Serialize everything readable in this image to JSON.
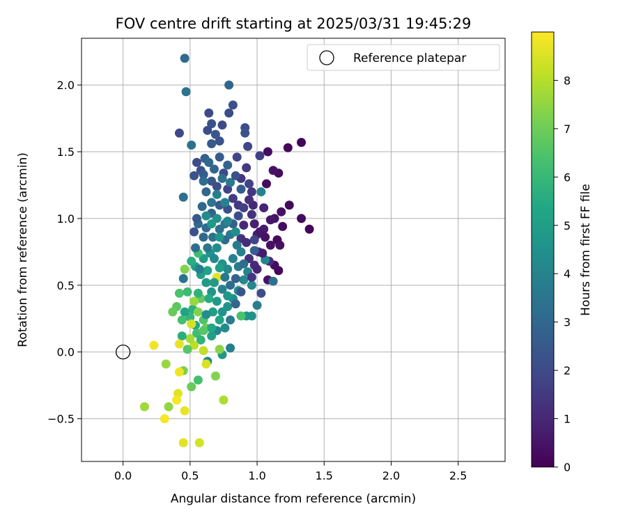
{
  "chart_data": {
    "type": "scatter",
    "title": "FOV centre drift starting at 2025/03/31 19:45:29",
    "xlabel": "Angular distance from reference (arcmin)",
    "ylabel": "Rotation from reference (arcmin)",
    "xlim": [
      -0.31,
      2.85
    ],
    "ylim": [
      -0.82,
      2.35
    ],
    "xticks": [
      0.0,
      0.5,
      1.0,
      1.5,
      2.0,
      2.5
    ],
    "xtick_labels": [
      "0.0",
      "0.5",
      "1.0",
      "1.5",
      "2.0",
      "2.5"
    ],
    "yticks": [
      -0.5,
      0.0,
      0.5,
      1.0,
      1.5,
      2.0
    ],
    "ytick_labels": [
      "−0.5",
      "0.0",
      "0.5",
      "1.0",
      "1.5",
      "2.0"
    ],
    "grid": true,
    "legend": {
      "placement": "top-right",
      "entries": [
        "Reference platepar"
      ]
    },
    "reference_point": {
      "name": "Reference platepar",
      "x": 0.0,
      "y": 0.0
    },
    "colormap": "viridis",
    "colorbar": {
      "label": "Hours from first FF file",
      "range": [
        0,
        9
      ],
      "ticks": [
        0,
        1,
        2,
        3,
        4,
        5,
        6,
        7,
        8
      ],
      "tick_labels": [
        "0",
        "1",
        "2",
        "3",
        "4",
        "5",
        "6",
        "7",
        "8"
      ]
    },
    "points": [
      {
        "x": 1.33,
        "y": 1.57,
        "c": 0.1
      },
      {
        "x": 1.23,
        "y": 1.53,
        "c": 0.2
      },
      {
        "x": 1.08,
        "y": 1.5,
        "c": 0.3
      },
      {
        "x": 1.24,
        "y": 1.1,
        "c": 0.2
      },
      {
        "x": 1.39,
        "y": 0.92,
        "c": 0.1
      },
      {
        "x": 1.33,
        "y": 1.0,
        "c": 0.2
      },
      {
        "x": 1.16,
        "y": 1.34,
        "c": 0.3
      },
      {
        "x": 1.12,
        "y": 1.36,
        "c": 0.4
      },
      {
        "x": 1.07,
        "y": 1.26,
        "c": 0.3
      },
      {
        "x": 1.18,
        "y": 1.05,
        "c": 0.4
      },
      {
        "x": 1.19,
        "y": 0.94,
        "c": 0.3
      },
      {
        "x": 1.15,
        "y": 0.84,
        "c": 0.2
      },
      {
        "x": 1.17,
        "y": 0.8,
        "c": 0.4
      },
      {
        "x": 1.16,
        "y": 0.61,
        "c": 0.2
      },
      {
        "x": 1.13,
        "y": 0.65,
        "c": 0.3
      },
      {
        "x": 1.08,
        "y": 0.54,
        "c": 0.5
      },
      {
        "x": 1.13,
        "y": 1.0,
        "c": 0.5
      },
      {
        "x": 1.1,
        "y": 0.99,
        "c": 0.6
      },
      {
        "x": 1.05,
        "y": 0.92,
        "c": 0.7
      },
      {
        "x": 1.0,
        "y": 0.88,
        "c": 0.8
      },
      {
        "x": 1.05,
        "y": 1.08,
        "c": 0.9
      },
      {
        "x": 0.97,
        "y": 1.1,
        "c": 1.0
      },
      {
        "x": 1.01,
        "y": 0.75,
        "c": 1.0
      },
      {
        "x": 0.98,
        "y": 0.65,
        "c": 1.1
      },
      {
        "x": 0.94,
        "y": 0.7,
        "c": 1.2
      },
      {
        "x": 0.9,
        "y": 0.95,
        "c": 1.0
      },
      {
        "x": 0.88,
        "y": 0.85,
        "c": 1.3
      },
      {
        "x": 1.09,
        "y": 0.68,
        "c": 1.2
      },
      {
        "x": 0.96,
        "y": 1.2,
        "c": 1.4
      },
      {
        "x": 0.92,
        "y": 1.38,
        "c": 1.5
      },
      {
        "x": 1.02,
        "y": 1.47,
        "c": 1.7
      },
      {
        "x": 0.85,
        "y": 1.46,
        "c": 1.8
      },
      {
        "x": 0.93,
        "y": 1.54,
        "c": 1.9
      },
      {
        "x": 0.91,
        "y": 1.68,
        "c": 2.1
      },
      {
        "x": 0.91,
        "y": 1.64,
        "c": 2.3
      },
      {
        "x": 0.82,
        "y": 1.85,
        "c": 2.2
      },
      {
        "x": 0.79,
        "y": 1.79,
        "c": 2.1
      },
      {
        "x": 0.74,
        "y": 1.7,
        "c": 2.0
      },
      {
        "x": 0.64,
        "y": 1.79,
        "c": 2.0
      },
      {
        "x": 0.66,
        "y": 1.71,
        "c": 2.3
      },
      {
        "x": 0.63,
        "y": 1.66,
        "c": 2.1
      },
      {
        "x": 0.69,
        "y": 1.63,
        "c": 2.4
      },
      {
        "x": 0.72,
        "y": 1.58,
        "c": 2.3
      },
      {
        "x": 0.66,
        "y": 1.56,
        "c": 2.5
      },
      {
        "x": 0.42,
        "y": 1.64,
        "c": 2.0
      },
      {
        "x": 0.55,
        "y": 1.42,
        "c": 2.1
      },
      {
        "x": 0.58,
        "y": 1.36,
        "c": 2.2
      },
      {
        "x": 0.53,
        "y": 1.32,
        "c": 2.3
      },
      {
        "x": 0.6,
        "y": 1.33,
        "c": 2.6
      },
      {
        "x": 0.61,
        "y": 1.45,
        "c": 2.7
      },
      {
        "x": 0.66,
        "y": 1.28,
        "c": 2.4
      },
      {
        "x": 0.7,
        "y": 1.24,
        "c": 2.1
      },
      {
        "x": 0.75,
        "y": 1.34,
        "c": 2.0
      },
      {
        "x": 0.78,
        "y": 1.22,
        "c": 1.8
      },
      {
        "x": 0.82,
        "y": 1.15,
        "c": 1.6
      },
      {
        "x": 0.86,
        "y": 1.1,
        "c": 1.5
      },
      {
        "x": 0.88,
        "y": 1.3,
        "c": 1.4
      },
      {
        "x": 0.94,
        "y": 1.26,
        "c": 1.8
      },
      {
        "x": 0.96,
        "y": 1.03,
        "c": 1.3
      },
      {
        "x": 0.98,
        "y": 0.84,
        "c": 1.9
      },
      {
        "x": 0.78,
        "y": 1.07,
        "c": 2.2
      },
      {
        "x": 0.72,
        "y": 1.1,
        "c": 2.5
      },
      {
        "x": 0.66,
        "y": 1.04,
        "c": 2.8
      },
      {
        "x": 0.62,
        "y": 1.2,
        "c": 2.9
      },
      {
        "x": 0.59,
        "y": 1.09,
        "c": 3.0
      },
      {
        "x": 0.56,
        "y": 0.96,
        "c": 3.1
      },
      {
        "x": 0.62,
        "y": 0.93,
        "c": 3.2
      },
      {
        "x": 0.67,
        "y": 0.86,
        "c": 3.4
      },
      {
        "x": 0.72,
        "y": 0.92,
        "c": 3.3
      },
      {
        "x": 0.76,
        "y": 0.96,
        "c": 3.5
      },
      {
        "x": 0.8,
        "y": 0.88,
        "c": 3.6
      },
      {
        "x": 0.85,
        "y": 0.8,
        "c": 3.7
      },
      {
        "x": 0.88,
        "y": 0.75,
        "c": 3.9
      },
      {
        "x": 0.93,
        "y": 0.6,
        "c": 4.0
      },
      {
        "x": 0.96,
        "y": 0.5,
        "c": 4.1
      },
      {
        "x": 0.9,
        "y": 0.54,
        "c": 4.2
      },
      {
        "x": 0.86,
        "y": 0.46,
        "c": 4.3
      },
      {
        "x": 0.82,
        "y": 0.4,
        "c": 4.4
      },
      {
        "x": 0.78,
        "y": 0.34,
        "c": 4.5
      },
      {
        "x": 0.74,
        "y": 0.3,
        "c": 4.6
      },
      {
        "x": 0.7,
        "y": 0.38,
        "c": 4.8
      },
      {
        "x": 0.66,
        "y": 0.45,
        "c": 4.7
      },
      {
        "x": 0.62,
        "y": 0.52,
        "c": 4.9
      },
      {
        "x": 0.58,
        "y": 0.58,
        "c": 5.0
      },
      {
        "x": 0.54,
        "y": 0.64,
        "c": 5.1
      },
      {
        "x": 0.6,
        "y": 0.7,
        "c": 4.9
      },
      {
        "x": 0.65,
        "y": 0.74,
        "c": 4.6
      },
      {
        "x": 0.7,
        "y": 0.78,
        "c": 4.4
      },
      {
        "x": 0.74,
        "y": 0.66,
        "c": 4.5
      },
      {
        "x": 0.78,
        "y": 0.62,
        "c": 4.2
      },
      {
        "x": 0.82,
        "y": 0.7,
        "c": 3.9
      },
      {
        "x": 0.86,
        "y": 0.64,
        "c": 3.7
      },
      {
        "x": 1.03,
        "y": 1.2,
        "c": 4.0
      },
      {
        "x": 1.06,
        "y": 0.69,
        "c": 4.1
      },
      {
        "x": 1.0,
        "y": 0.35,
        "c": 3.8
      },
      {
        "x": 1.12,
        "y": 0.53,
        "c": 3.4
      },
      {
        "x": 0.92,
        "y": 0.27,
        "c": 4.6
      },
      {
        "x": 0.8,
        "y": 0.03,
        "c": 3.9
      },
      {
        "x": 0.74,
        "y": -0.02,
        "c": 4.8
      },
      {
        "x": 0.7,
        "y": 0.16,
        "c": 4.1
      },
      {
        "x": 0.63,
        "y": -0.07,
        "c": 4.2
      },
      {
        "x": 0.54,
        "y": 0.2,
        "c": 5.4
      },
      {
        "x": 0.52,
        "y": 0.32,
        "c": 5.7
      },
      {
        "x": 0.48,
        "y": 0.45,
        "c": 6.1
      },
      {
        "x": 0.45,
        "y": 0.55,
        "c": 3.5
      },
      {
        "x": 0.46,
        "y": 0.62,
        "c": 7.3
      },
      {
        "x": 0.51,
        "y": 0.68,
        "c": 5.6
      },
      {
        "x": 0.56,
        "y": 0.74,
        "c": 6.2
      },
      {
        "x": 0.45,
        "y": 1.16,
        "c": 3.3
      },
      {
        "x": 0.46,
        "y": 2.2,
        "c": 3.1
      },
      {
        "x": 0.47,
        "y": 1.95,
        "c": 3.4
      },
      {
        "x": 0.79,
        "y": 2.0,
        "c": 3.0
      },
      {
        "x": 0.51,
        "y": 1.55,
        "c": 3.3
      },
      {
        "x": 0.55,
        "y": 1.0,
        "c": 2.5
      },
      {
        "x": 0.53,
        "y": 0.9,
        "c": 2.3
      },
      {
        "x": 0.42,
        "y": 0.44,
        "c": 6.4
      },
      {
        "x": 0.4,
        "y": 0.34,
        "c": 6.7
      },
      {
        "x": 0.37,
        "y": 0.3,
        "c": 6.9
      },
      {
        "x": 0.44,
        "y": 0.24,
        "c": 6.3
      },
      {
        "x": 0.5,
        "y": 0.26,
        "c": 5.9
      },
      {
        "x": 0.55,
        "y": 0.14,
        "c": 6.2
      },
      {
        "x": 0.58,
        "y": 0.09,
        "c": 5.8
      },
      {
        "x": 0.6,
        "y": 0.24,
        "c": 6.5
      },
      {
        "x": 0.62,
        "y": 0.18,
        "c": 7.0
      },
      {
        "x": 0.58,
        "y": 0.4,
        "c": 6.8
      },
      {
        "x": 0.56,
        "y": 0.3,
        "c": 7.3
      },
      {
        "x": 0.53,
        "y": 0.38,
        "c": 7.6
      },
      {
        "x": 0.51,
        "y": 0.21,
        "c": 8.4
      },
      {
        "x": 0.53,
        "y": 0.05,
        "c": 8.1
      },
      {
        "x": 0.5,
        "y": 0.1,
        "c": 7.8
      },
      {
        "x": 0.48,
        "y": 0.02,
        "c": 6.6
      },
      {
        "x": 0.44,
        "y": 0.12,
        "c": 5.6
      },
      {
        "x": 0.46,
        "y": 0.3,
        "c": 5.2
      },
      {
        "x": 0.56,
        "y": -0.21,
        "c": 6.3
      },
      {
        "x": 0.51,
        "y": -0.26,
        "c": 6.9
      },
      {
        "x": 0.45,
        "y": -0.14,
        "c": 7.2
      },
      {
        "x": 0.42,
        "y": -0.15,
        "c": 8.8
      },
      {
        "x": 0.41,
        "y": -0.31,
        "c": 8.6
      },
      {
        "x": 0.4,
        "y": -0.36,
        "c": 8.9
      },
      {
        "x": 0.46,
        "y": -0.44,
        "c": 8.7
      },
      {
        "x": 0.34,
        "y": -0.41,
        "c": 7.5
      },
      {
        "x": 0.31,
        "y": -0.5,
        "c": 8.9
      },
      {
        "x": 0.16,
        "y": -0.41,
        "c": 7.7
      },
      {
        "x": 0.32,
        "y": -0.09,
        "c": 7.6
      },
      {
        "x": 0.23,
        "y": 0.05,
        "c": 8.8
      },
      {
        "x": 0.42,
        "y": 0.06,
        "c": 8.7
      },
      {
        "x": 0.6,
        "y": 0.01,
        "c": 8.2
      },
      {
        "x": 0.62,
        "y": -0.09,
        "c": 8.5
      },
      {
        "x": 0.69,
        "y": -0.18,
        "c": 7.3
      },
      {
        "x": 0.75,
        "y": -0.36,
        "c": 7.9
      },
      {
        "x": 0.57,
        "y": -0.68,
        "c": 8.4
      },
      {
        "x": 0.45,
        "y": -0.68,
        "c": 8.6
      },
      {
        "x": 0.72,
        "y": 0.02,
        "c": 7.4
      },
      {
        "x": 0.7,
        "y": 0.56,
        "c": 8.6
      },
      {
        "x": 0.63,
        "y": 0.61,
        "c": 5.2
      },
      {
        "x": 0.72,
        "y": 0.63,
        "c": 5.0
      },
      {
        "x": 0.68,
        "y": 0.52,
        "c": 4.9
      },
      {
        "x": 0.74,
        "y": 0.47,
        "c": 4.0
      },
      {
        "x": 0.76,
        "y": 0.56,
        "c": 3.6
      },
      {
        "x": 0.8,
        "y": 0.5,
        "c": 3.2
      },
      {
        "x": 0.84,
        "y": 0.55,
        "c": 2.8
      },
      {
        "x": 0.88,
        "y": 0.45,
        "c": 2.4
      },
      {
        "x": 0.84,
        "y": 0.36,
        "c": 2.9
      },
      {
        "x": 0.78,
        "y": 0.42,
        "c": 4.7
      },
      {
        "x": 0.72,
        "y": 0.24,
        "c": 5.3
      },
      {
        "x": 0.67,
        "y": 0.3,
        "c": 5.0
      },
      {
        "x": 0.64,
        "y": 0.4,
        "c": 5.5
      },
      {
        "x": 0.88,
        "y": 0.27,
        "c": 6.4
      },
      {
        "x": 0.96,
        "y": 0.27,
        "c": 4.5
      },
      {
        "x": 0.66,
        "y": 0.18,
        "c": 5.4
      },
      {
        "x": 0.6,
        "y": 0.16,
        "c": 6.6
      },
      {
        "x": 0.57,
        "y": 0.62,
        "c": 3.8
      },
      {
        "x": 0.54,
        "y": 0.78,
        "c": 3.2
      },
      {
        "x": 0.6,
        "y": 0.86,
        "c": 3.0
      },
      {
        "x": 0.63,
        "y": 0.78,
        "c": 3.6
      },
      {
        "x": 0.68,
        "y": 0.7,
        "c": 4.2
      },
      {
        "x": 0.76,
        "y": 0.84,
        "c": 3.1
      },
      {
        "x": 0.82,
        "y": 0.96,
        "c": 2.7
      },
      {
        "x": 0.86,
        "y": 1.02,
        "c": 2.1
      },
      {
        "x": 0.9,
        "y": 1.08,
        "c": 1.7
      },
      {
        "x": 0.94,
        "y": 1.14,
        "c": 1.2
      },
      {
        "x": 0.98,
        "y": 0.96,
        "c": 0.8
      },
      {
        "x": 1.02,
        "y": 0.9,
        "c": 0.6
      },
      {
        "x": 1.06,
        "y": 0.86,
        "c": 0.5
      },
      {
        "x": 1.1,
        "y": 0.8,
        "c": 0.4
      },
      {
        "x": 1.04,
        "y": 0.74,
        "c": 0.7
      },
      {
        "x": 1.0,
        "y": 0.62,
        "c": 0.9
      },
      {
        "x": 0.96,
        "y": 0.56,
        "c": 1.4
      },
      {
        "x": 0.92,
        "y": 0.82,
        "c": 1.1
      },
      {
        "x": 0.78,
        "y": 1.4,
        "c": 2.8
      },
      {
        "x": 0.72,
        "y": 1.46,
        "c": 2.6
      },
      {
        "x": 0.68,
        "y": 1.37,
        "c": 2.9
      },
      {
        "x": 0.64,
        "y": 1.42,
        "c": 3.0
      },
      {
        "x": 0.6,
        "y": 1.28,
        "c": 3.2
      },
      {
        "x": 0.74,
        "y": 1.3,
        "c": 3.4
      },
      {
        "x": 0.8,
        "y": 1.27,
        "c": 3.6
      },
      {
        "x": 0.84,
        "y": 1.32,
        "c": 2.2
      },
      {
        "x": 0.88,
        "y": 1.22,
        "c": 2.6
      },
      {
        "x": 0.7,
        "y": 1.18,
        "c": 3.8
      },
      {
        "x": 0.76,
        "y": 1.12,
        "c": 4.0
      },
      {
        "x": 0.66,
        "y": 1.12,
        "c": 3.5
      },
      {
        "x": 0.62,
        "y": 1.02,
        "c": 4.3
      },
      {
        "x": 0.7,
        "y": 1.0,
        "c": 4.5
      },
      {
        "x": 0.78,
        "y": 0.98,
        "c": 4.1
      },
      {
        "x": 0.84,
        "y": 0.9,
        "c": 4.4
      },
      {
        "x": 0.72,
        "y": 0.86,
        "c": 4.7
      },
      {
        "x": 0.66,
        "y": 0.96,
        "c": 4.8
      },
      {
        "x": 0.56,
        "y": 0.44,
        "c": 5.8
      },
      {
        "x": 0.66,
        "y": 0.12,
        "c": 5.1
      },
      {
        "x": 0.62,
        "y": 0.28,
        "c": 4.4
      },
      {
        "x": 0.76,
        "y": 0.18,
        "c": 4.3
      },
      {
        "x": 0.8,
        "y": 0.24,
        "c": 3.7
      },
      {
        "x": 0.9,
        "y": 0.66,
        "c": 3.2
      },
      {
        "x": 0.98,
        "y": 0.76,
        "c": 2.7
      },
      {
        "x": 1.03,
        "y": 0.44,
        "c": 2.1
      }
    ]
  }
}
